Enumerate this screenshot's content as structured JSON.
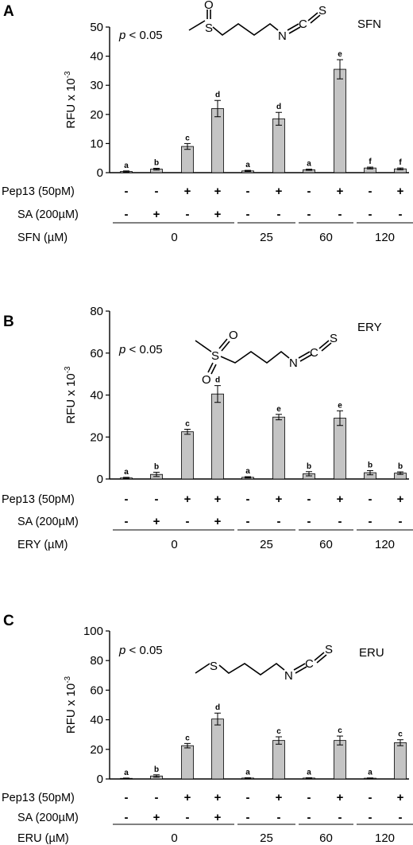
{
  "chart_data": [
    {
      "type": "bar",
      "panel_label": "A",
      "compound": "SFN",
      "ylabel_main": "RFU x 10",
      "ylabel_exp": "-3",
      "ylim": [
        0,
        50
      ],
      "yticks": [
        "0",
        "10",
        "20",
        "30",
        "40",
        "50"
      ],
      "pvalue_p": "p",
      "pvalue_rest": " < 0.05",
      "values": [
        0.4,
        1.2,
        9.0,
        22.0,
        0.6,
        18.5,
        1.0,
        35.5,
        1.6,
        1.3
      ],
      "errors": [
        0.2,
        0.3,
        1.0,
        2.8,
        0.2,
        2.2,
        0.2,
        3.3,
        0.3,
        0.3
      ],
      "sig_letters": [
        "a",
        "b",
        "c",
        "d",
        "a",
        "d",
        "a",
        "e",
        "f",
        "f"
      ],
      "pep13_label": "Pep13 (50pM)",
      "pep13_signs": [
        "-",
        "-",
        "+",
        "+",
        "-",
        "+",
        "-",
        "+",
        "-",
        "+"
      ],
      "sa_label": "SA (200µM)",
      "sa_signs": [
        "-",
        "+",
        "-",
        "+",
        "-",
        "-",
        "-",
        "-",
        "-",
        "-"
      ],
      "conc_label": "SFN (µM)",
      "conc_groups": [
        "0",
        "25",
        "60",
        "120"
      ],
      "structure": {
        "atoms": [
          "S",
          "O",
          "N",
          "C",
          "S"
        ],
        "sulfone": false
      }
    },
    {
      "type": "bar",
      "panel_label": "B",
      "compound": "ERY",
      "ylabel_main": "RFU x 10",
      "ylabel_exp": "-3",
      "ylim": [
        0,
        80
      ],
      "yticks": [
        "0",
        "20",
        "40",
        "60",
        "80"
      ],
      "pvalue_p": "p",
      "pvalue_rest": " < 0.05",
      "values": [
        0.5,
        2.2,
        22.5,
        40.5,
        0.8,
        29.5,
        2.5,
        29.0,
        3.0,
        2.8
      ],
      "errors": [
        0.3,
        1.0,
        1.2,
        4.0,
        0.3,
        1.3,
        1.0,
        3.5,
        1.0,
        0.6
      ],
      "sig_letters": [
        "a",
        "b",
        "c",
        "d",
        "a",
        "e",
        "b",
        "e",
        "b",
        "b"
      ],
      "pep13_label": "Pep13 (50pM)",
      "pep13_signs": [
        "-",
        "-",
        "+",
        "+",
        "-",
        "+",
        "-",
        "+",
        "-",
        "+"
      ],
      "sa_label": "SA (200µM)",
      "sa_signs": [
        "-",
        "+",
        "-",
        "+",
        "-",
        "-",
        "-",
        "-",
        "-",
        "-"
      ],
      "conc_label": "ERY (µM)",
      "conc_groups": [
        "0",
        "25",
        "60",
        "120"
      ],
      "structure": {
        "atoms": [
          "S",
          "O",
          "O",
          "N",
          "C",
          "S"
        ],
        "sulfone": true
      }
    },
    {
      "type": "bar",
      "panel_label": "C",
      "compound": "ERU",
      "ylabel_main": "RFU x 10",
      "ylabel_exp": "-3",
      "ylim": [
        0,
        100
      ],
      "yticks": [
        "0",
        "20",
        "40",
        "60",
        "80",
        "100"
      ],
      "pvalue_p": "p",
      "pvalue_rest": " < 0.05",
      "values": [
        0.4,
        2.0,
        22.5,
        40.5,
        0.6,
        26.0,
        0.6,
        26.0,
        0.5,
        24.5
      ],
      "errors": [
        0.2,
        0.8,
        1.5,
        4.0,
        0.2,
        2.5,
        0.2,
        3.0,
        0.2,
        2.0
      ],
      "sig_letters": [
        "a",
        "b",
        "c",
        "d",
        "a",
        "c",
        "a",
        "c",
        "a",
        "c"
      ],
      "pep13_label": "Pep13 (50pM)",
      "pep13_signs": [
        "-",
        "-",
        "+",
        "+",
        "-",
        "+",
        "-",
        "+",
        "-",
        "+"
      ],
      "sa_label": "SA (200µM)",
      "sa_signs": [
        "-",
        "+",
        "-",
        "+",
        "-",
        "-",
        "-",
        "-",
        "-",
        "-"
      ],
      "conc_label": "ERU (µM)",
      "conc_groups": [
        "0",
        "25",
        "60",
        "120"
      ],
      "structure": {
        "atoms": [
          "S",
          "N",
          "C",
          "S"
        ],
        "sulfone": false
      }
    }
  ],
  "colors": {
    "bar_fill": "#c4c4c4",
    "bar_stroke": "#000000",
    "axis": "#000000"
  }
}
